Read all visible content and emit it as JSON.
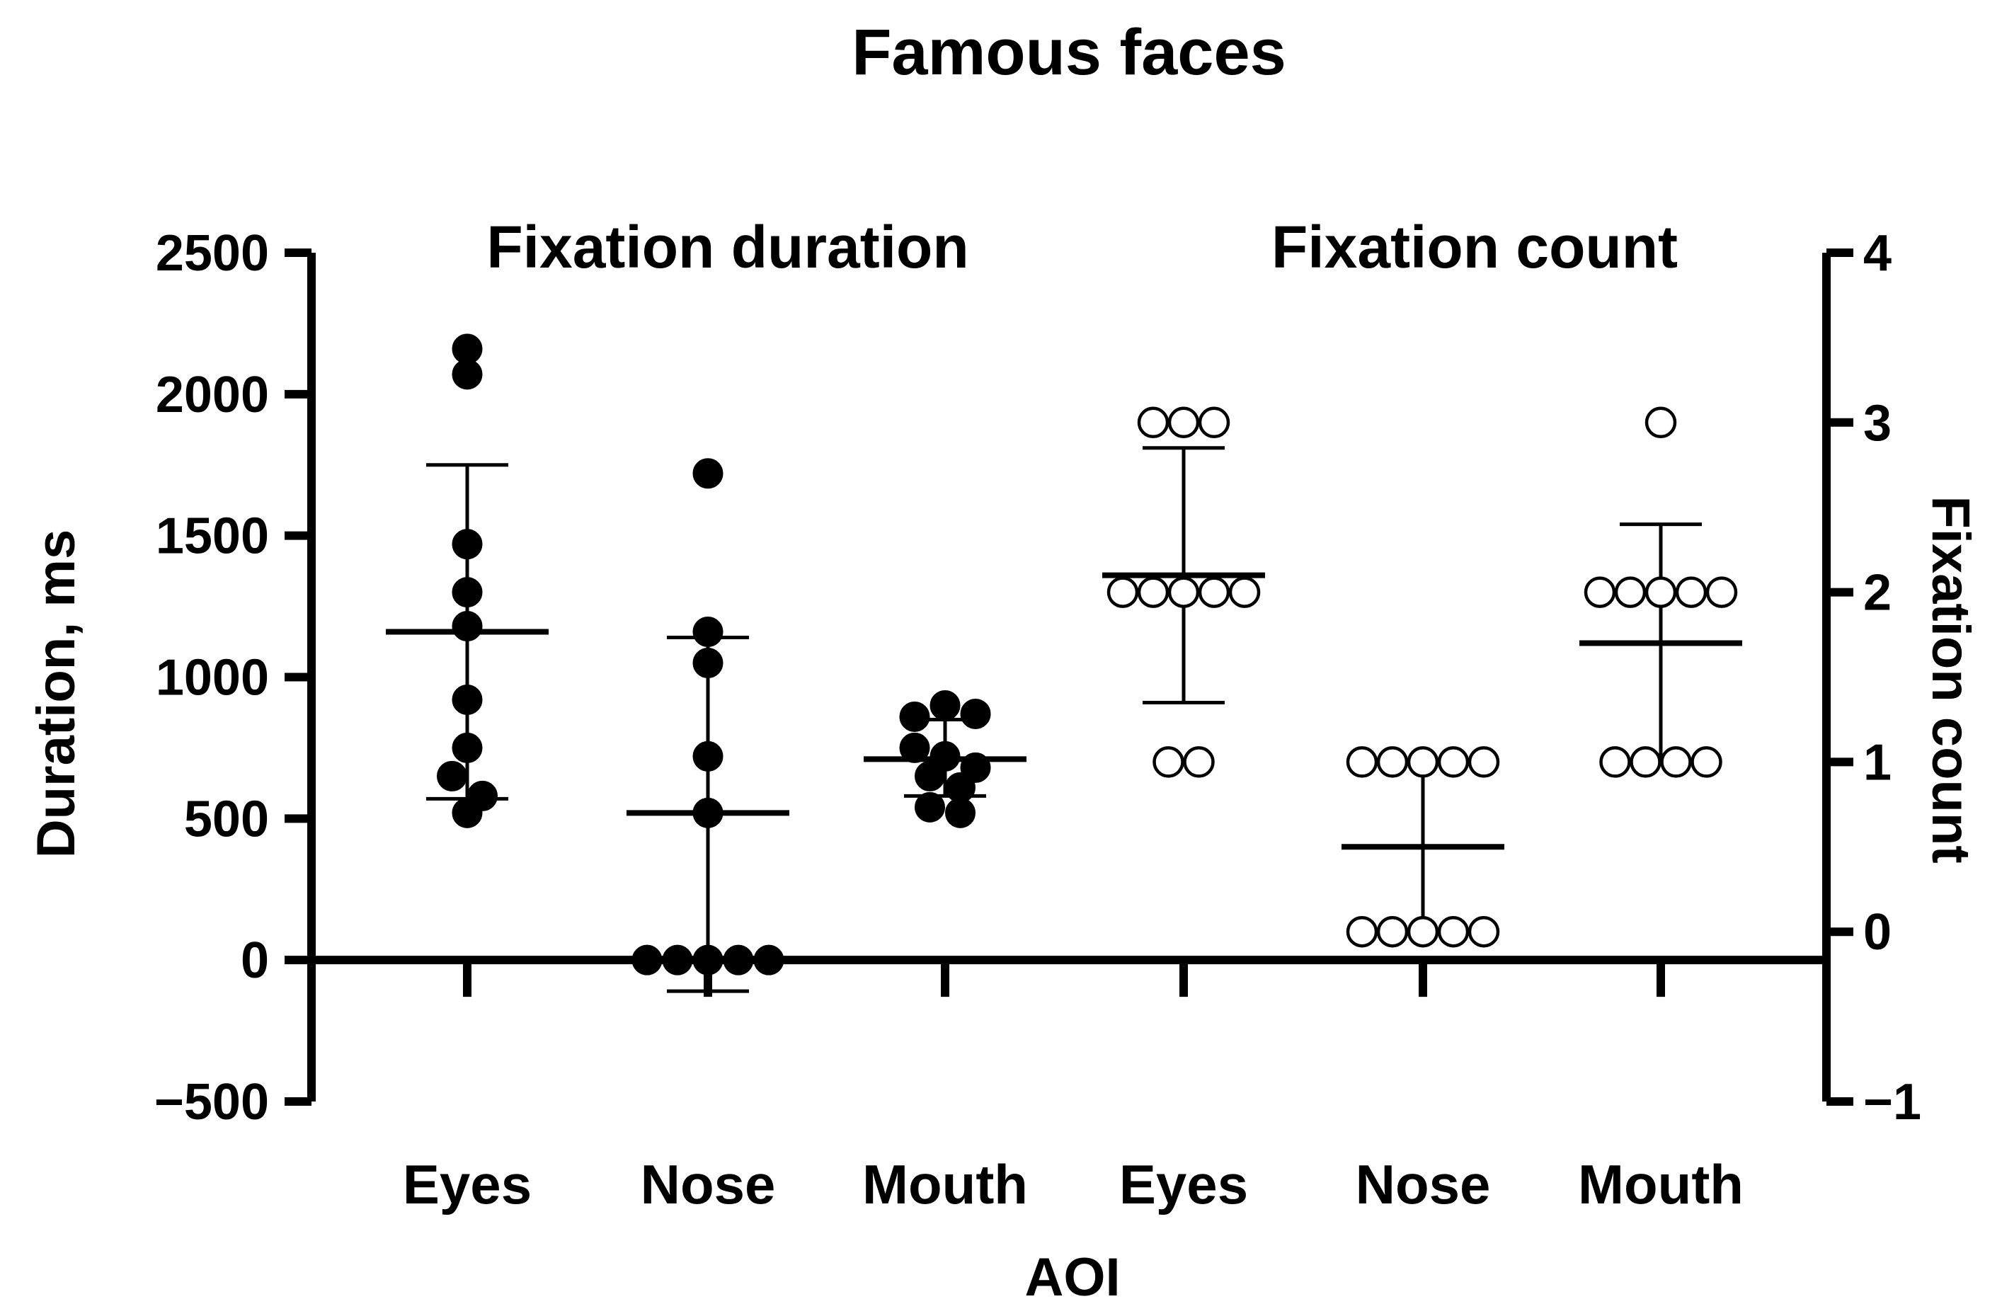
{
  "chart_data": {
    "type": "scatter",
    "title": "Famous faces",
    "xlabel": "AOI",
    "ylabel": "Duration, ms",
    "y2label": "Fixation count",
    "ylim": [
      -500,
      2500
    ],
    "y2lim": [
      -1,
      4
    ],
    "yticks": [
      "2500",
      "2000",
      "1500",
      "1000",
      "500",
      "0",
      "−500"
    ],
    "y2ticks": [
      "4",
      "3",
      "2",
      "1",
      "0",
      "−1"
    ],
    "groups": [
      {
        "label": "Fixation duration",
        "axis": "left",
        "marker": "filled"
      },
      {
        "label": "Fixation count",
        "axis": "right",
        "marker": "open"
      }
    ],
    "categories": [
      "Eyes",
      "Nose",
      "Mouth",
      "Eyes",
      "Nose",
      "Mouth"
    ],
    "series": [
      {
        "category": "Eyes",
        "group": 0,
        "mean": 1160,
        "sd_low": 570,
        "sd_high": 1750,
        "points": [
          2070,
          2160,
          1470,
          1300,
          1180,
          920,
          750,
          650,
          580,
          520
        ]
      },
      {
        "category": "Nose",
        "group": 0,
        "mean": 520,
        "sd_low": -110,
        "sd_high": 1140,
        "points": [
          1720,
          1160,
          1050,
          720,
          520,
          0,
          0,
          0,
          0,
          0
        ]
      },
      {
        "category": "Mouth",
        "group": 0,
        "mean": 710,
        "sd_low": 580,
        "sd_high": 850,
        "points": [
          860,
          900,
          870,
          750,
          720,
          680,
          650,
          610,
          540,
          520
        ]
      },
      {
        "category": "Eyes",
        "group": 1,
        "mean": 2.1,
        "sd_low": 1.35,
        "sd_high": 2.85,
        "points": [
          3,
          3,
          3,
          2,
          2,
          2,
          2,
          2,
          1,
          1
        ]
      },
      {
        "category": "Nose",
        "group": 1,
        "mean": 0.5,
        "sd_low": 0,
        "sd_high": 1,
        "points": [
          1,
          1,
          1,
          1,
          1,
          0,
          0,
          0,
          0,
          0
        ]
      },
      {
        "category": "Mouth",
        "group": 1,
        "mean": 1.7,
        "sd_low": 1.0,
        "sd_high": 2.4,
        "points": [
          3,
          2,
          2,
          2,
          2,
          2,
          1,
          1,
          1,
          1
        ]
      }
    ]
  }
}
